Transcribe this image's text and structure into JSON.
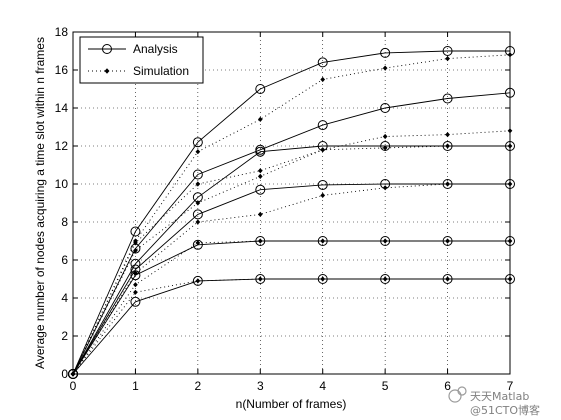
{
  "chart_data": {
    "type": "line",
    "title": "",
    "xlabel": "n(Number of frames)",
    "ylabel": "Average number of nodes acquiring a time slot within n frames",
    "xlim": [
      0,
      7
    ],
    "ylim": [
      0,
      18
    ],
    "xticks": [
      "0",
      "1",
      "2",
      "3",
      "4",
      "5",
      "6",
      "7"
    ],
    "yticks": [
      "0",
      "2",
      "4",
      "6",
      "8",
      "10",
      "12",
      "14",
      "16",
      "18"
    ],
    "grid": true,
    "legend_position": "top-left",
    "legend": [
      {
        "label": "Analysis",
        "style": "solid line, circle marker"
      },
      {
        "label": "Simulation",
        "style": "dotted line, diamond marker"
      }
    ],
    "x": [
      0,
      1,
      2,
      3,
      4,
      5,
      6,
      7
    ],
    "series": [
      {
        "group": "Analysis",
        "values": [
          0,
          7.5,
          12.2,
          15.0,
          16.4,
          16.9,
          17.0,
          17.0
        ]
      },
      {
        "group": "Analysis",
        "values": [
          0,
          6.6,
          10.5,
          11.8,
          13.1,
          14.0,
          14.5,
          14.8
        ]
      },
      {
        "group": "Analysis",
        "values": [
          0,
          5.8,
          9.3,
          11.7,
          12.0,
          12.0,
          12.0,
          12.0
        ]
      },
      {
        "group": "Analysis",
        "values": [
          0,
          5.5,
          8.4,
          9.7,
          9.95,
          10.0,
          10.0,
          10.0
        ]
      },
      {
        "group": "Analysis",
        "values": [
          0,
          5.2,
          6.8,
          7.0,
          7.0,
          7.0,
          7.0,
          7.0
        ]
      },
      {
        "group": "Analysis",
        "values": [
          0,
          3.8,
          4.9,
          5.0,
          5.0,
          5.0,
          5.0,
          5.0
        ]
      },
      {
        "group": "Simulation",
        "values": [
          0,
          7.0,
          11.7,
          13.4,
          15.5,
          16.1,
          16.6,
          16.8
        ]
      },
      {
        "group": "Simulation",
        "values": [
          0,
          6.9,
          10.0,
          10.7,
          11.8,
          12.5,
          12.6,
          12.8
        ]
      },
      {
        "group": "Simulation",
        "values": [
          0,
          6.5,
          9.0,
          10.4,
          11.8,
          11.9,
          12.0,
          12.0
        ]
      },
      {
        "group": "Simulation",
        "values": [
          0,
          5.3,
          8.0,
          8.4,
          9.4,
          9.8,
          10.0,
          10.0
        ]
      },
      {
        "group": "Simulation",
        "values": [
          0,
          4.7,
          6.9,
          7.0,
          7.0,
          7.0,
          7.0,
          7.0
        ]
      },
      {
        "group": "Simulation",
        "values": [
          0,
          4.3,
          4.9,
          5.0,
          5.0,
          5.0,
          5.0,
          5.0
        ]
      }
    ]
  },
  "watermark": {
    "line1": "天天Matlab",
    "line2": "@51CTO博客"
  }
}
